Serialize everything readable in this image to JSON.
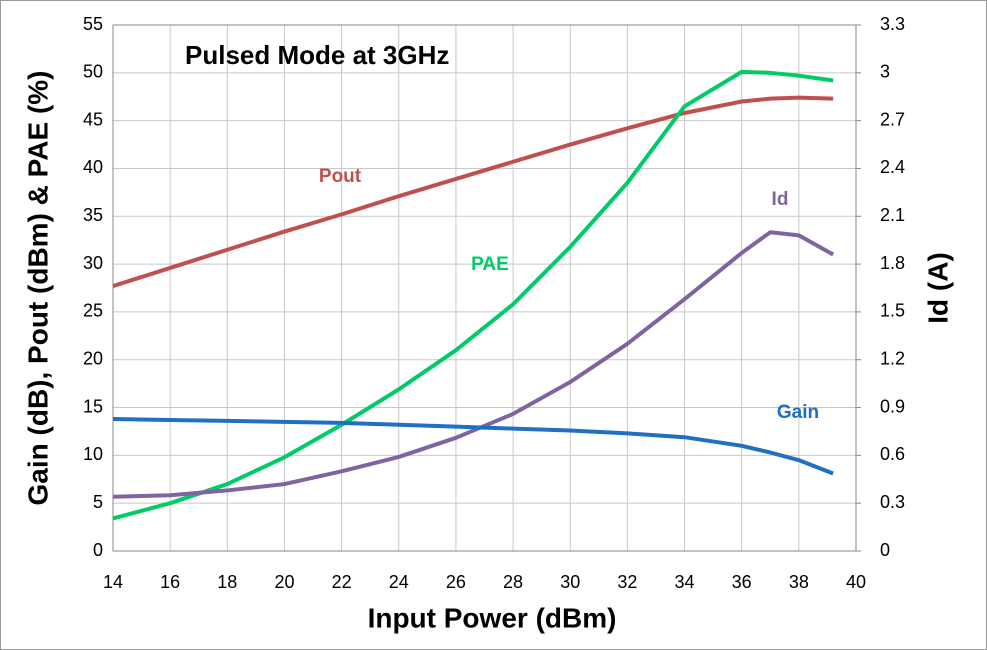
{
  "chart_data": {
    "type": "line",
    "title": "Pulsed Mode at 3GHz",
    "x_label": "Input Power (dBm)",
    "y_label": "Gain (dB), Pout (dBm) & PAE (%)",
    "y2_label": "Id (A)",
    "x": [
      14,
      16,
      18,
      20,
      22,
      24,
      26,
      28,
      30,
      32,
      34,
      36,
      37,
      38,
      39.2
    ],
    "series": [
      {
        "name": "Pout",
        "color": "#c0504d",
        "values": [
          27.7,
          29.6,
          31.5,
          33.4,
          35.2,
          37.1,
          38.9,
          40.7,
          42.5,
          44.2,
          45.8,
          47.0,
          47.3,
          47.4,
          47.3
        ]
      },
      {
        "name": "PAE",
        "color": "#00cc66",
        "values": [
          3.4,
          5.0,
          7.0,
          9.8,
          13.2,
          16.9,
          21.0,
          25.8,
          31.8,
          38.5,
          46.5,
          50.1,
          50.0,
          49.7,
          49.2
        ]
      },
      {
        "name": "Id",
        "color": "#8064a2",
        "axis": "y2",
        "values": [
          0.34,
          0.35,
          0.38,
          0.42,
          0.5,
          0.59,
          0.71,
          0.86,
          1.06,
          1.3,
          1.58,
          1.87,
          2.0,
          1.98,
          1.86
        ]
      },
      {
        "name": "Gain",
        "color": "#1f70c1",
        "values": [
          13.8,
          13.7,
          13.6,
          13.5,
          13.4,
          13.2,
          13.0,
          12.8,
          12.6,
          12.3,
          11.9,
          11.0,
          10.3,
          9.5,
          8.1
        ]
      }
    ],
    "xlim": [
      14,
      40
    ],
    "xticks": [
      14,
      16,
      18,
      20,
      22,
      24,
      26,
      28,
      30,
      32,
      34,
      36,
      38,
      40
    ],
    "ylim": [
      0,
      55
    ],
    "yticks": [
      0,
      5,
      10,
      15,
      20,
      25,
      30,
      35,
      40,
      45,
      50,
      55
    ],
    "y2lim": [
      0,
      3.3
    ],
    "y2ticks": [
      0,
      0.3,
      0.6,
      0.9,
      1.2,
      1.5,
      1.8,
      2.1,
      2.4,
      2.7,
      3,
      3.3
    ],
    "grid": true
  }
}
